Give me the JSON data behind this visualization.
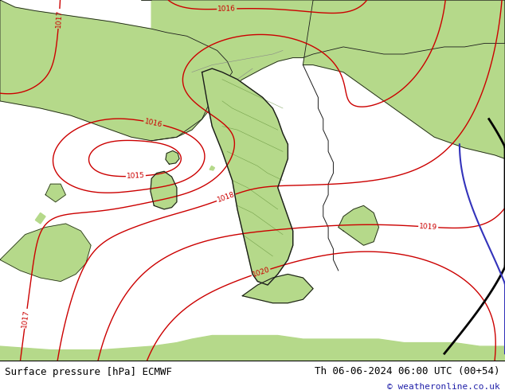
{
  "title_left": "Surface pressure [hPa] ECMWF",
  "title_right": "Th 06-06-2024 06:00 UTC (00+54)",
  "copyright": "© weatheronline.co.uk",
  "land_color": "#b5d98a",
  "sea_color": "#c8c8c8",
  "contour_color": "#cc0000",
  "coast_color": "#1a1a1a",
  "border_color": "#888888",
  "label_fontsize": 6.5,
  "title_fontsize": 9,
  "copyright_fontsize": 8,
  "figsize": [
    6.34,
    4.9
  ],
  "dpi": 100,
  "black_line_color": "#000000",
  "blue_line_color": "#3333bb"
}
